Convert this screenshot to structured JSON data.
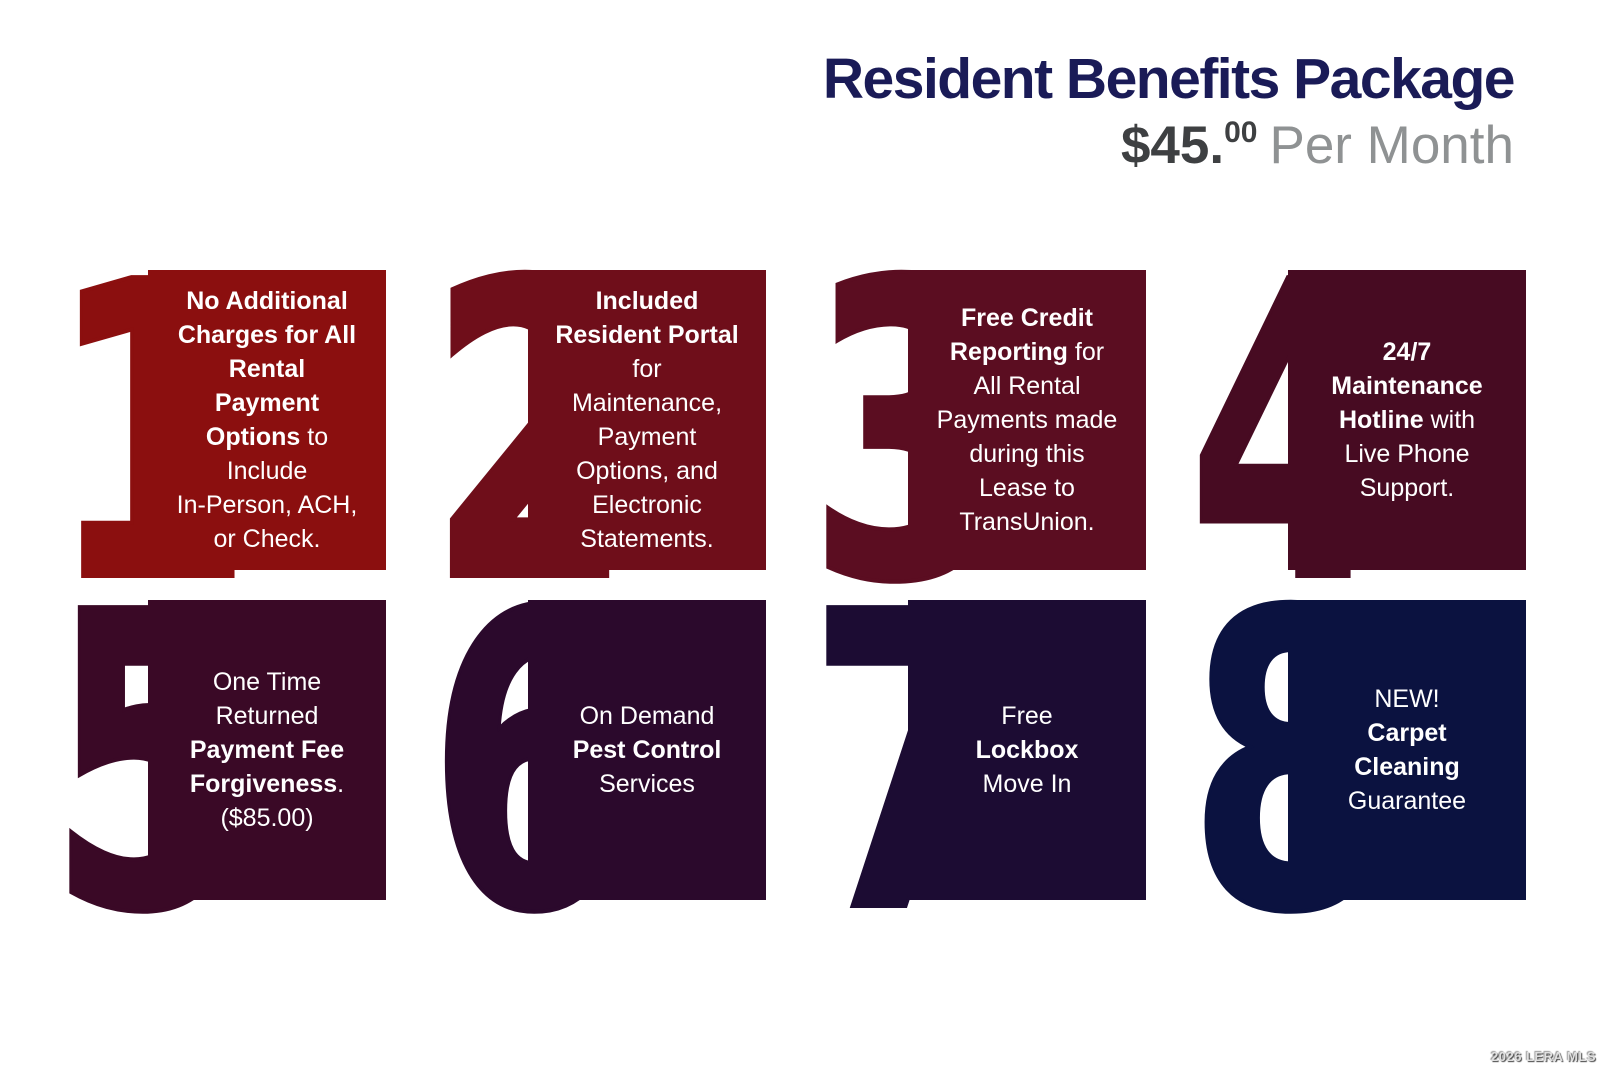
{
  "header": {
    "title": "Resident Benefits Package",
    "price_dollars": "$45.",
    "price_cents": "00",
    "price_suffix": "Per Month"
  },
  "watermark": "2026 LERA MLS",
  "colors": {
    "title_navy": "#1A1B57",
    "price_dark": "#3E4042",
    "price_gray": "#8F9293",
    "card_text": "#FFFFFF"
  },
  "cards": [
    {
      "number": "1",
      "color": "#8B0F0F",
      "lines": [
        [
          {
            "t": "No Additional",
            "b": true
          }
        ],
        [
          {
            "t": "Charges for All",
            "b": true
          }
        ],
        [
          {
            "t": "Rental",
            "b": true
          }
        ],
        [
          {
            "t": "Payment",
            "b": true
          }
        ],
        [
          {
            "t": "Options",
            "b": true
          },
          {
            "t": " to"
          }
        ],
        [
          {
            "t": "Include"
          }
        ],
        [
          {
            "t": "In-Person, ACH,"
          }
        ],
        [
          {
            "t": "or Check."
          }
        ]
      ]
    },
    {
      "number": "2",
      "color": "#6F0E1A",
      "lines": [
        [
          {
            "t": "Included",
            "b": true
          }
        ],
        [
          {
            "t": "Resident Portal",
            "b": true
          }
        ],
        [
          {
            "t": "for"
          }
        ],
        [
          {
            "t": "Maintenance,"
          }
        ],
        [
          {
            "t": "Payment"
          }
        ],
        [
          {
            "t": "Options, and"
          }
        ],
        [
          {
            "t": "Electronic"
          }
        ],
        [
          {
            "t": "Statements."
          }
        ]
      ]
    },
    {
      "number": "3",
      "color": "#5B0D21",
      "lines": [
        [
          {
            "t": "Free Credit",
            "b": true
          }
        ],
        [
          {
            "t": "Reporting",
            "b": true
          },
          {
            "t": " for"
          }
        ],
        [
          {
            "t": "All Rental"
          }
        ],
        [
          {
            "t": "Payments made"
          }
        ],
        [
          {
            "t": "during this"
          }
        ],
        [
          {
            "t": "Lease to"
          }
        ],
        [
          {
            "t": "TransUnion."
          }
        ]
      ]
    },
    {
      "number": "4",
      "color": "#470B22",
      "lines": [
        [
          {
            "t": "24/7",
            "b": true
          }
        ],
        [
          {
            "t": "Maintenance",
            "b": true
          }
        ],
        [
          {
            "t": "Hotline",
            "b": true
          },
          {
            "t": " with"
          }
        ],
        [
          {
            "t": "Live Phone"
          }
        ],
        [
          {
            "t": "Support."
          }
        ]
      ]
    },
    {
      "number": "5",
      "color": "#3A0926",
      "lines": [
        [
          {
            "t": "One Time"
          }
        ],
        [
          {
            "t": "Returned"
          }
        ],
        [
          {
            "t": "Payment Fee",
            "b": true
          }
        ],
        [
          {
            "t": "Forgiveness",
            "b": true
          },
          {
            "t": "."
          }
        ],
        [
          {
            "t": "($85.00)"
          }
        ]
      ]
    },
    {
      "number": "6",
      "color": "#2B092C",
      "lines": [
        [
          {
            "t": "On Demand"
          }
        ],
        [
          {
            "t": "Pest Control",
            "b": true
          }
        ],
        [
          {
            "t": "Services"
          }
        ]
      ]
    },
    {
      "number": "7",
      "color": "#1C0C33",
      "lines": [
        [
          {
            "t": "Free"
          }
        ],
        [
          {
            "t": "Lockbox",
            "b": true
          }
        ],
        [
          {
            "t": "Move In"
          }
        ]
      ]
    },
    {
      "number": "8",
      "color": "#0B1240",
      "lines": [
        [
          {
            "t": "NEW!"
          }
        ],
        [
          {
            "t": "Carpet",
            "b": true
          }
        ],
        [
          {
            "t": "Cleaning",
            "b": true
          }
        ],
        [
          {
            "t": "Guarantee"
          }
        ]
      ]
    }
  ]
}
